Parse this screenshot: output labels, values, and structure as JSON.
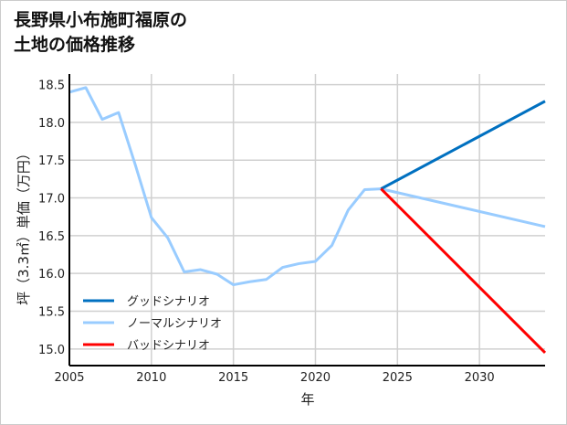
{
  "chart_data": {
    "type": "line",
    "title_lines": [
      "長野県小布施町福原の",
      "土地の価格推移"
    ],
    "xlabel": "年",
    "ylabel": "坪（3.3㎡）単価（万円）",
    "xlim": [
      2005,
      2034
    ],
    "ylim": [
      14.78,
      18.64
    ],
    "xticks": [
      2005,
      2010,
      2015,
      2020,
      2025,
      2030
    ],
    "yticks": [
      15.0,
      15.5,
      16.0,
      16.5,
      17.0,
      17.5,
      18.0,
      18.5
    ],
    "grid": true,
    "legend_position": "lower-left",
    "series": [
      {
        "name": "グッドシナリオ",
        "color": "#0070c0",
        "x": [
          2024,
          2034
        ],
        "y": [
          17.12,
          18.28
        ]
      },
      {
        "name": "ノーマルシナリオ",
        "color": "#99ccff",
        "x": [
          2005,
          2006,
          2007,
          2008,
          2009,
          2010,
          2011,
          2012,
          2013,
          2014,
          2015,
          2016,
          2017,
          2018,
          2019,
          2020,
          2021,
          2022,
          2023,
          2024,
          2034
        ],
        "y": [
          18.4,
          18.46,
          18.04,
          18.13,
          17.45,
          16.74,
          16.47,
          16.02,
          16.05,
          15.99,
          15.85,
          15.89,
          15.92,
          16.08,
          16.13,
          16.16,
          16.37,
          16.84,
          17.11,
          17.12,
          16.62
        ]
      },
      {
        "name": "バッドシナリオ",
        "color": "#ff0000",
        "x": [
          2024,
          2034
        ],
        "y": [
          17.12,
          14.95
        ]
      }
    ]
  }
}
